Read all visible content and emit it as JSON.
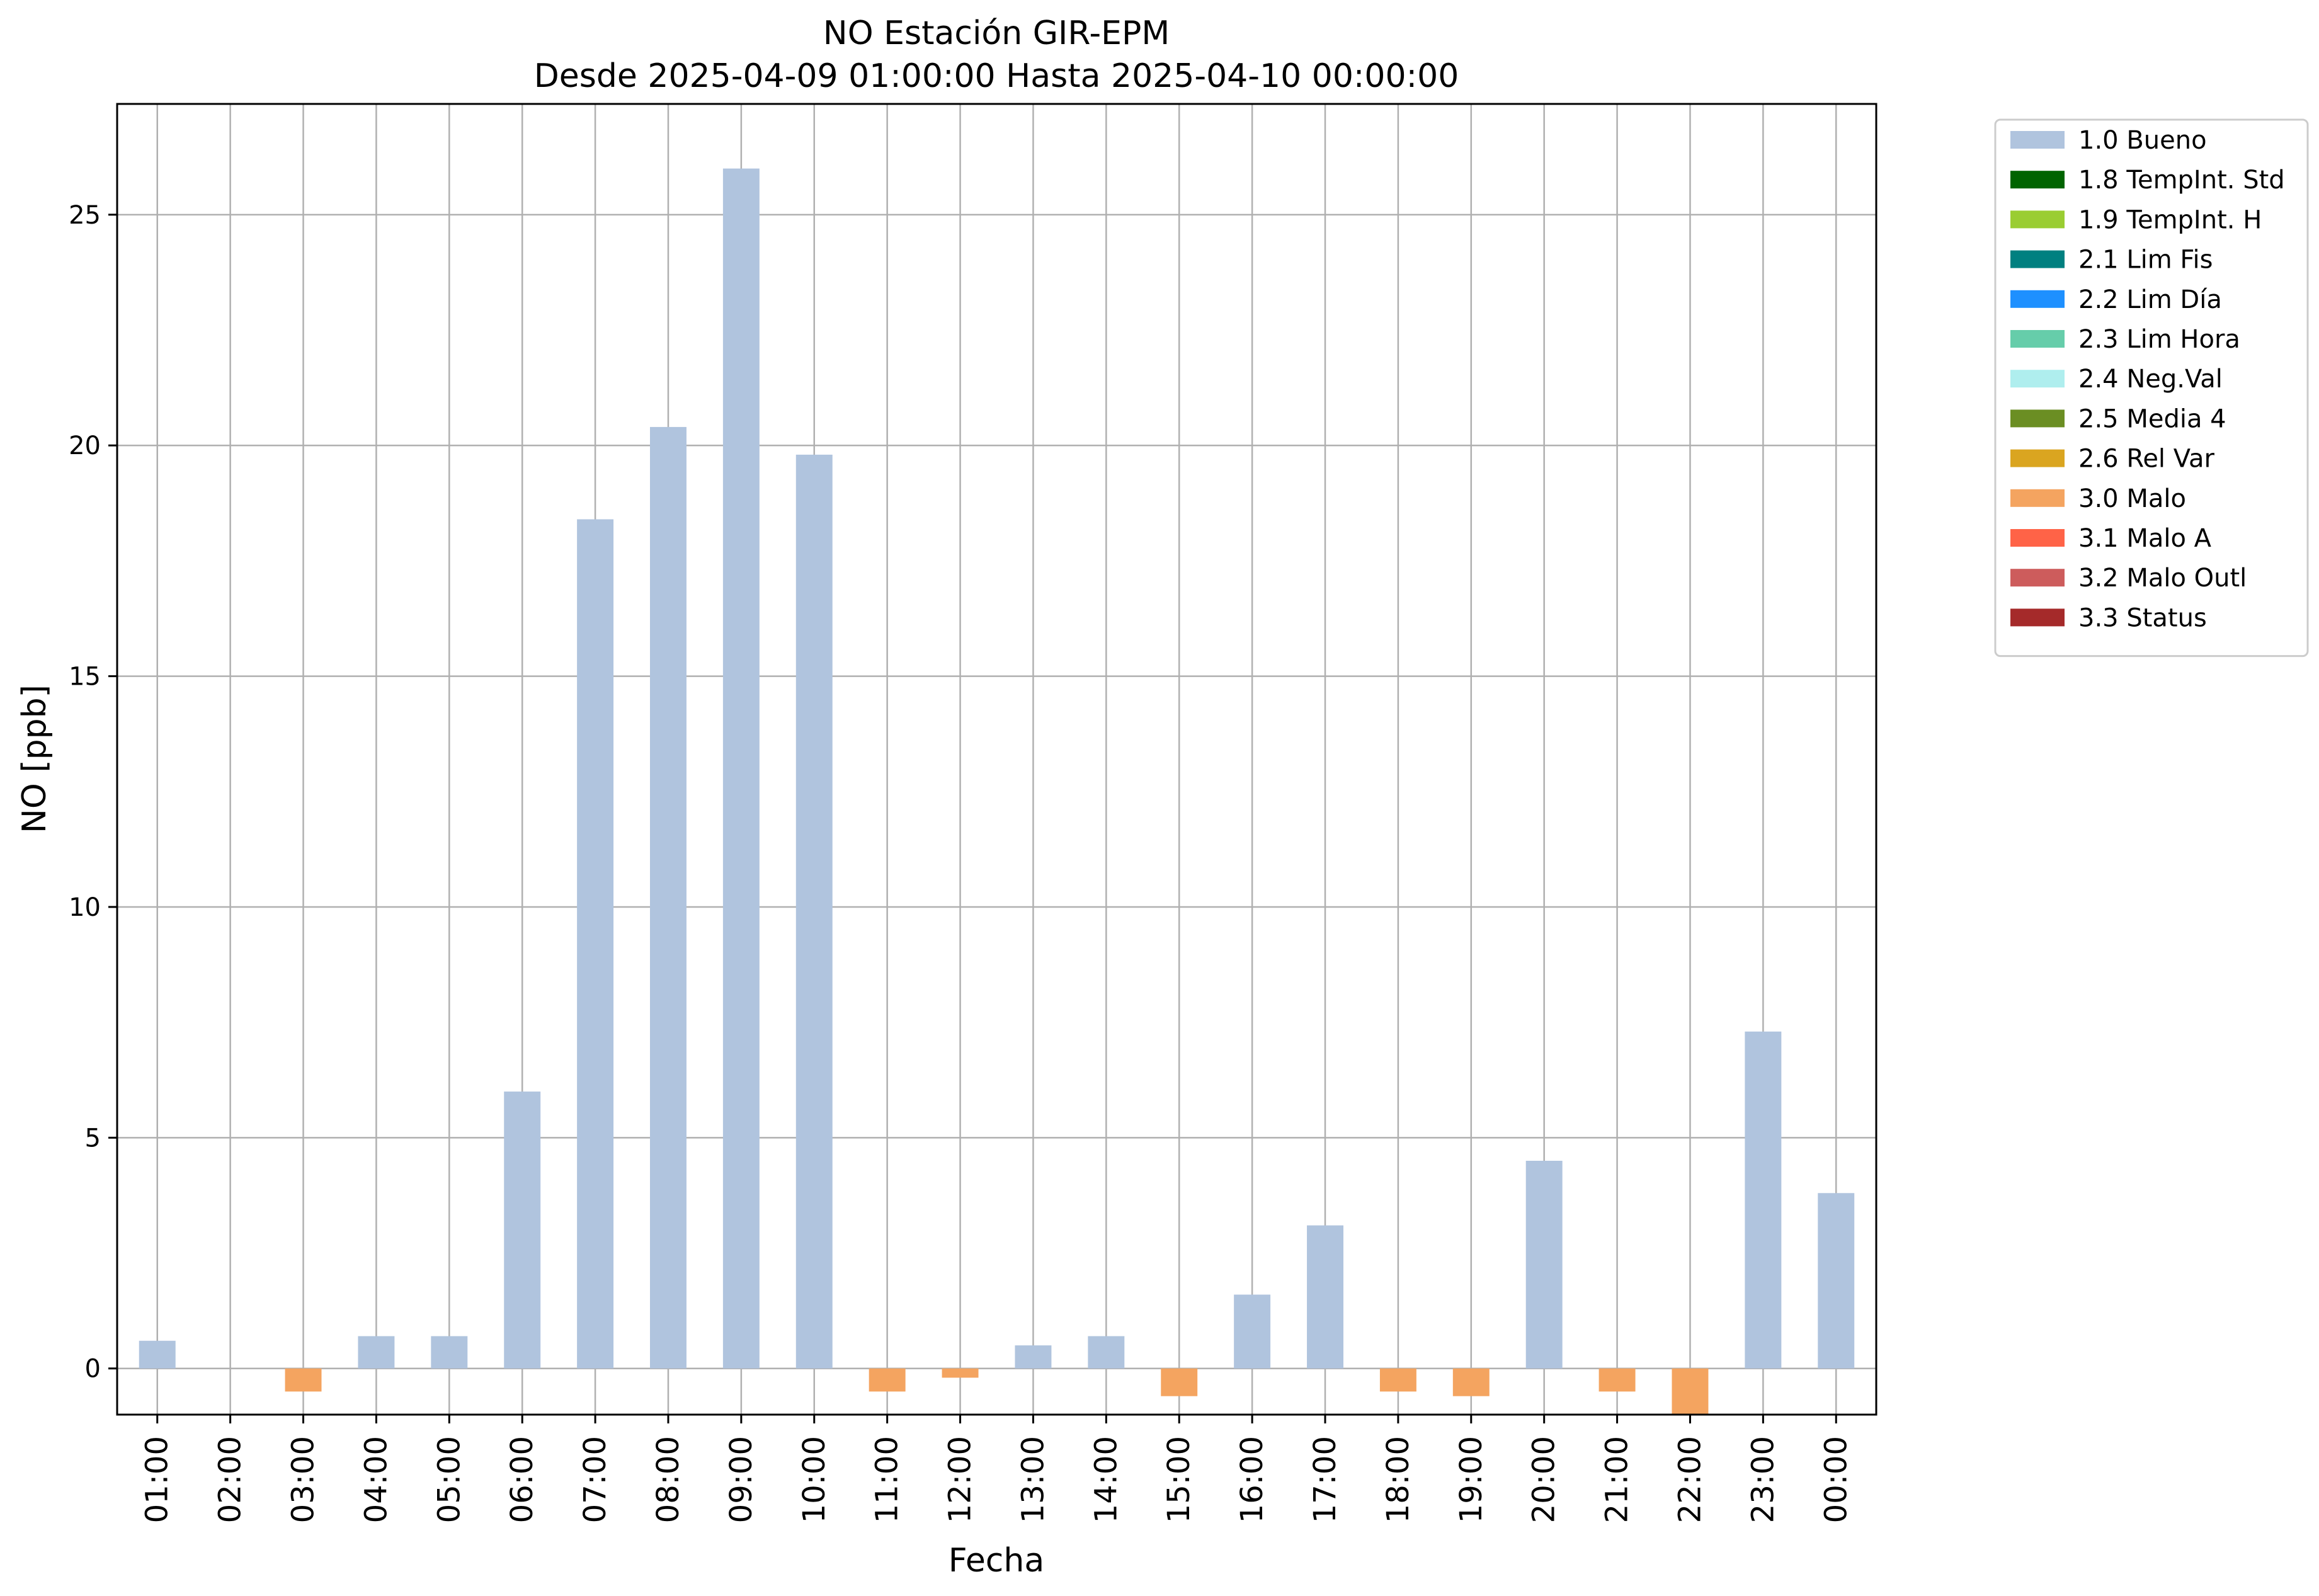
{
  "chart_data": {
    "type": "bar",
    "title": "NO Estación GIR-EPM",
    "subtitle": "Desde 2025-04-09 01:00:00 Hasta 2025-04-10 00:00:00",
    "xlabel": "Fecha",
    "ylabel": "NO [ppb]",
    "ylim": [
      -1.0,
      27.4
    ],
    "yticks": [
      0,
      5,
      10,
      15,
      20,
      25
    ],
    "grid": true,
    "legend_position": "outside-top-right",
    "categories": [
      "01:00",
      "02:00",
      "03:00",
      "04:00",
      "05:00",
      "06:00",
      "07:00",
      "08:00",
      "09:00",
      "10:00",
      "11:00",
      "12:00",
      "13:00",
      "14:00",
      "15:00",
      "16:00",
      "17:00",
      "18:00",
      "19:00",
      "20:00",
      "21:00",
      "22:00",
      "23:00",
      "00:00"
    ],
    "values": [
      0.6,
      null,
      -0.5,
      0.7,
      0.7,
      6.0,
      18.4,
      20.4,
      26.0,
      19.8,
      -0.5,
      -0.2,
      0.5,
      0.7,
      -0.6,
      1.6,
      3.1,
      -0.5,
      -0.6,
      4.5,
      -0.5,
      -1.0,
      7.3,
      3.8
    ],
    "flags": [
      "1.0 Bueno",
      null,
      "3.0 Malo",
      "1.0 Bueno",
      "1.0 Bueno",
      "1.0 Bueno",
      "1.0 Bueno",
      "1.0 Bueno",
      "1.0 Bueno",
      "1.0 Bueno",
      "3.0 Malo",
      "3.0 Malo",
      "1.0 Bueno",
      "1.0 Bueno",
      "3.0 Malo",
      "1.0 Bueno",
      "1.0 Bueno",
      "3.0 Malo",
      "3.0 Malo",
      "1.0 Bueno",
      "3.0 Malo",
      "3.0 Malo",
      "1.0 Bueno",
      "1.0 Bueno"
    ],
    "legend": [
      {
        "label": "1.0 Bueno",
        "color": "#b0c4de"
      },
      {
        "label": "1.8 TempInt. Std",
        "color": "#006400"
      },
      {
        "label": "1.9 TempInt. H",
        "color": "#9acd32"
      },
      {
        "label": "2.1 Lim Fis",
        "color": "#008080"
      },
      {
        "label": "2.2 Lim Día",
        "color": "#1e90ff"
      },
      {
        "label": "2.3 Lim Hora",
        "color": "#66cdaa"
      },
      {
        "label": "2.4 Neg.Val",
        "color": "#afeeee"
      },
      {
        "label": "2.5 Media 4",
        "color": "#6b8e23"
      },
      {
        "label": "2.6 Rel Var",
        "color": "#daa520"
      },
      {
        "label": "3.0 Malo",
        "color": "#f4a460"
      },
      {
        "label": "3.1 Malo A",
        "color": "#ff6347"
      },
      {
        "label": "3.2 Malo Outl",
        "color": "#cd5c5c"
      },
      {
        "label": "3.3 Status",
        "color": "#a52a2a"
      }
    ],
    "colors": {
      "grid": "#b0b0b0",
      "axis": "#000000"
    }
  }
}
